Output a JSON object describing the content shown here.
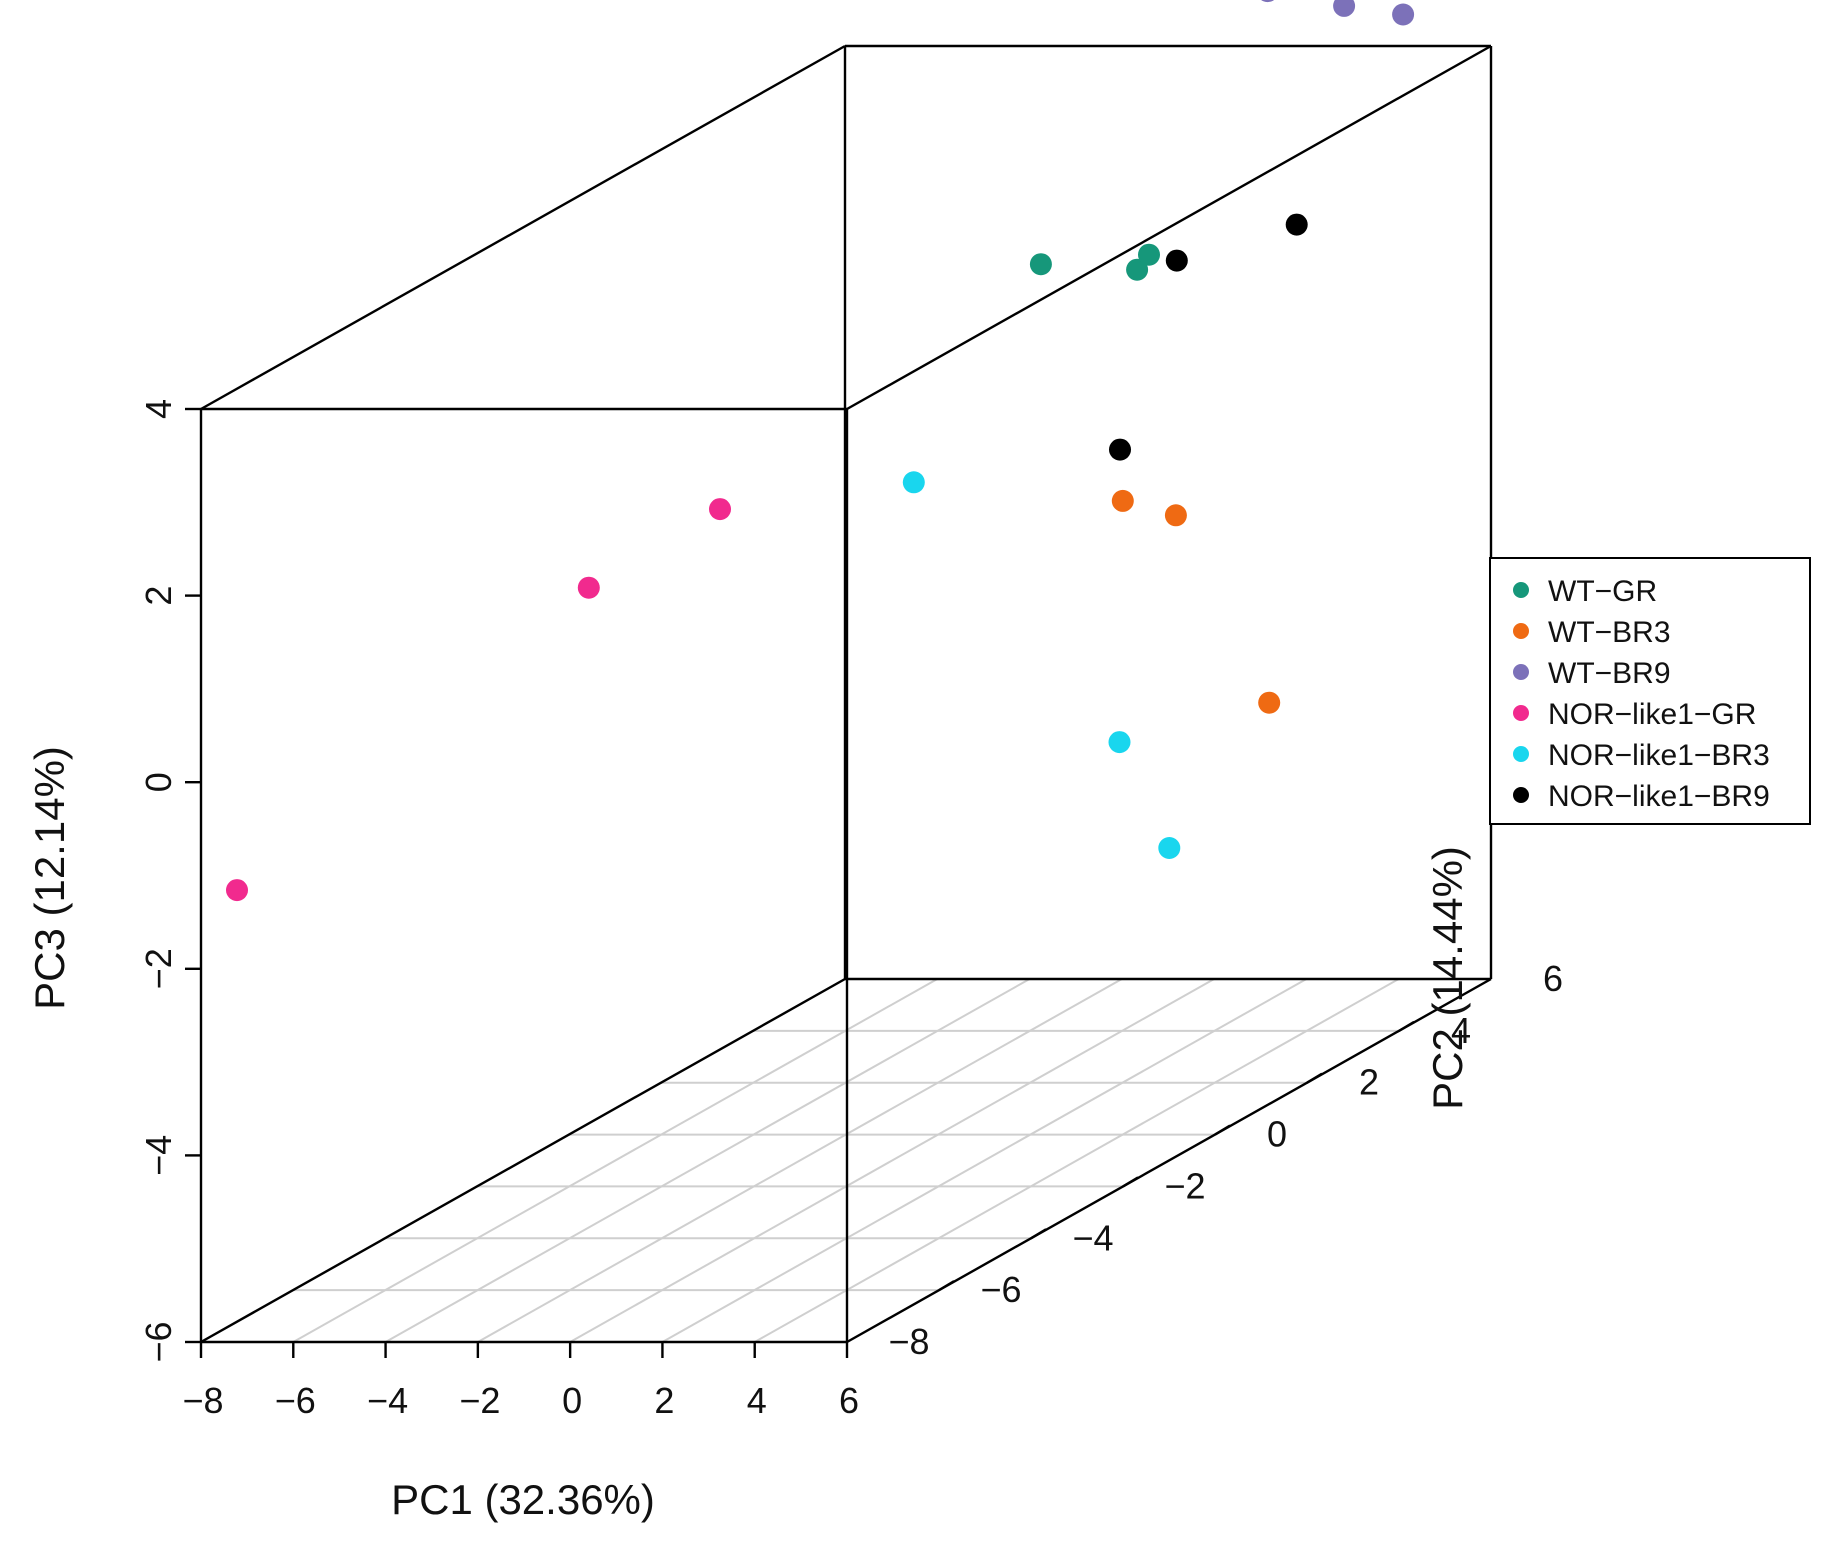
{
  "chart_data": {
    "type": "scatter3d",
    "title": "",
    "xlabel": "PC1 (32.36%)",
    "ylabel": "PC2 (14.44%)",
    "zlabel": "PC3 (12.14%)",
    "xlim": [
      -8,
      6
    ],
    "ylim": [
      -8,
      6
    ],
    "zlim": [
      -6,
      4
    ],
    "xticks": [
      -8,
      -6,
      -4,
      -2,
      0,
      2,
      4,
      6
    ],
    "yticks": [
      -8,
      -6,
      -4,
      -2,
      0,
      2,
      4,
      6
    ],
    "zticks": [
      -6,
      -4,
      -2,
      0,
      2,
      4
    ],
    "legend_position": "right",
    "series": [
      {
        "name": "WT−GR",
        "color": "#16977a",
        "points": [
          {
            "x": 1.37,
            "y": 2.95,
            "z": 2.45
          },
          {
            "x": 1.34,
            "y": 3.24,
            "z": 2.53
          },
          {
            "x": 1.12,
            "y": 1.11,
            "z": 3.02
          }
        ]
      },
      {
        "name": "WT−BR3",
        "color": "#ef6a13",
        "points": [
          {
            "x": 4.57,
            "y": -0.57,
            "z": 0.95
          },
          {
            "x": 5.77,
            "y": -0.62,
            "z": 0.81
          },
          {
            "x": 2.12,
            "y": 5.07,
            "z": -2.78
          }
        ]
      },
      {
        "name": "WT−BR9",
        "color": "#7c71b9",
        "points": [
          {
            "x": 0.66,
            "y": 6.5,
            "z": 4.45
          },
          {
            "x": 1.38,
            "y": 7.44,
            "z": 4.03
          },
          {
            "x": 2.2,
            "y": 7.9,
            "z": 3.81
          }
        ]
      },
      {
        "name": "NOR−like1−GR",
        "color": "#f12a8e",
        "points": [
          {
            "x": -0.47,
            "y": -4.27,
            "z": 1.89
          },
          {
            "x": -1.55,
            "y": -6.04,
            "z": 1.54
          },
          {
            "x": -7.34,
            "y": -7.88,
            "z": -1.19
          }
        ]
      },
      {
        "name": "NOR−like1−BR3",
        "color": "#19d6ee",
        "points": [
          {
            "x": 0.33,
            "y": -0.86,
            "z": 1.23
          },
          {
            "x": 3.8,
            "y": 0.13,
            "z": -1.83
          },
          {
            "x": 1.49,
            "y": 3.53,
            "z": -3.91
          }
        ]
      },
      {
        "name": "NOR−like1−BR9",
        "color": "#000000",
        "points": [
          {
            "x": 4.71,
            "y": 3.07,
            "z": 2.9
          },
          {
            "x": 2.85,
            "y": 2.33,
            "z": 2.72
          },
          {
            "x": 4.08,
            "y": -0.14,
            "z": 1.38
          }
        ]
      }
    ]
  }
}
